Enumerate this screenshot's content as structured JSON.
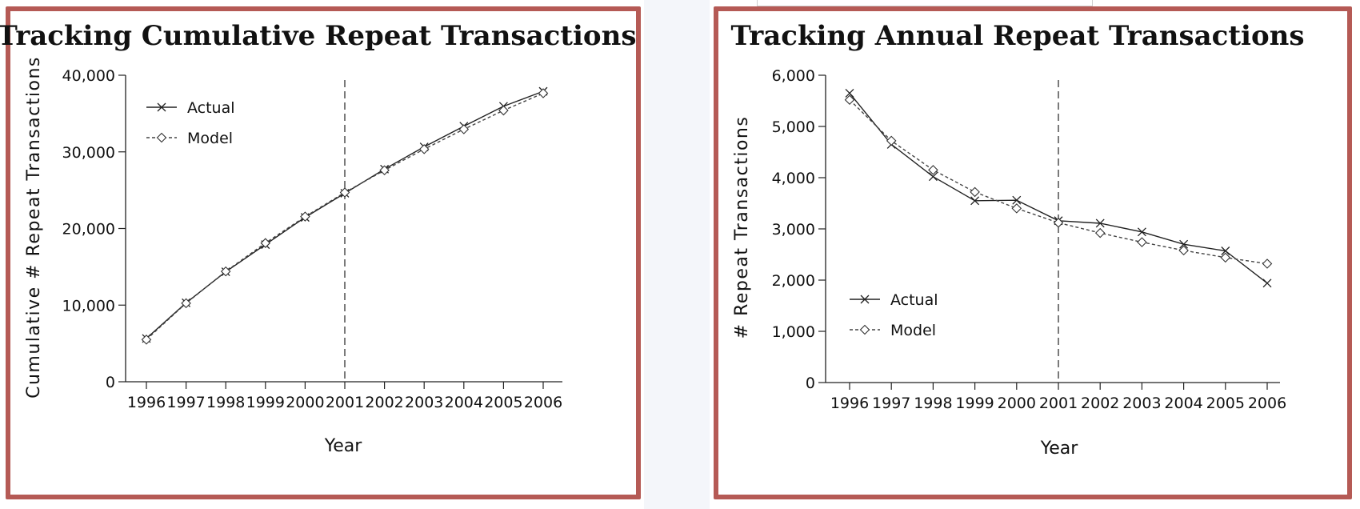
{
  "chart_data": [
    {
      "type": "line",
      "title": "Tracking Cumulative Repeat Transactions",
      "xlabel": "Year",
      "ylabel": "Cumulative # Repeat Transactions",
      "x": [
        "1996",
        "1997",
        "1998",
        "1999",
        "2000",
        "2001",
        "2002",
        "2003",
        "2004",
        "2005",
        "2006"
      ],
      "y_ticks": [
        "0",
        "10,000",
        "20,000",
        "30,000",
        "40,000"
      ],
      "ylim": [
        0,
        40000
      ],
      "split_year": "2001",
      "legend_position": "top-left",
      "series": [
        {
          "name": "Actual",
          "style": "solid",
          "marker": "x",
          "values": [
            5650,
            10300,
            14350,
            17900,
            21450,
            24600,
            27750,
            30650,
            33350,
            35950,
            37900
          ]
        },
        {
          "name": "Model",
          "style": "dashed",
          "marker": "diamond",
          "values": [
            5500,
            10250,
            14400,
            18100,
            21550,
            24700,
            27600,
            30350,
            32950,
            35400,
            37650
          ]
        }
      ]
    },
    {
      "type": "line",
      "title": "Tracking Annual Repeat Transactions",
      "xlabel": "Year",
      "ylabel": "# Repeat Transactions",
      "x": [
        "1996",
        "1997",
        "1998",
        "1999",
        "2000",
        "2001",
        "2002",
        "2003",
        "2004",
        "2005",
        "2006"
      ],
      "y_ticks": [
        "0",
        "1,000",
        "2,000",
        "3,000",
        "4,000",
        "5,000",
        "6,000"
      ],
      "ylim": [
        0,
        6000
      ],
      "split_year": "2001",
      "legend_position": "bottom-left",
      "series": [
        {
          "name": "Actual",
          "style": "solid",
          "marker": "x",
          "values": [
            5650,
            4650,
            4020,
            3550,
            3560,
            3160,
            3110,
            2940,
            2700,
            2570,
            1940
          ]
        },
        {
          "name": "Model",
          "style": "dashed",
          "marker": "diamond",
          "values": [
            5520,
            4720,
            4150,
            3720,
            3400,
            3120,
            2920,
            2740,
            2580,
            2440,
            2320
          ]
        }
      ]
    }
  ],
  "colors": {
    "frame": "#b55a55",
    "ink": "#111111"
  }
}
